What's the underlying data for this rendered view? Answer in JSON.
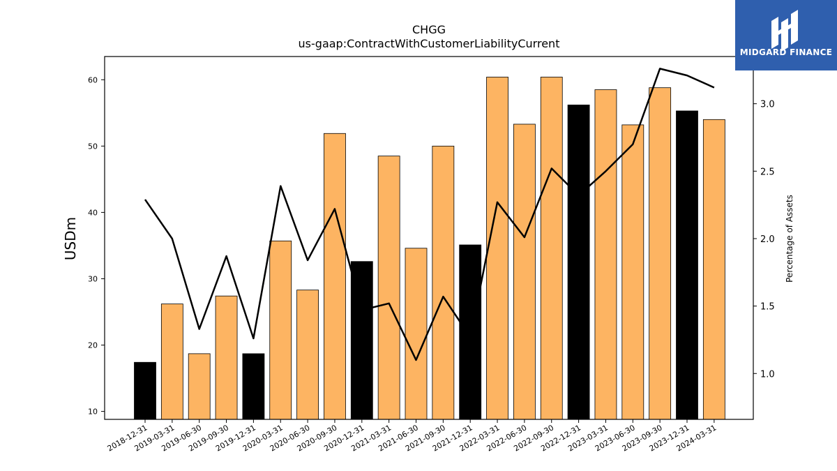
{
  "chart_data": {
    "type": "bar",
    "title": "CHGG",
    "subtitle": "us-gaap:ContractWithCustomerLiabilityCurrent",
    "ylabel": "USDm",
    "y2label": "Percentage of Assets",
    "ylim": [
      8.8,
      63.5
    ],
    "y2lim": [
      0.66,
      3.35
    ],
    "yticks": [
      10,
      20,
      30,
      40,
      50,
      60
    ],
    "y2ticks": [
      1.0,
      1.5,
      2.0,
      2.5,
      3.0
    ],
    "grid": false,
    "categories": [
      "2018-12-31",
      "2019-03-31",
      "2019-06-30",
      "2019-09-30",
      "2019-12-31",
      "2020-03-31",
      "2020-06-30",
      "2020-09-30",
      "2020-12-31",
      "2021-03-31",
      "2021-06-30",
      "2021-09-30",
      "2021-12-31",
      "2022-03-31",
      "2022-06-30",
      "2022-09-30",
      "2022-12-31",
      "2023-03-31",
      "2023-06-30",
      "2023-09-30",
      "2023-12-31",
      "2024-03-31"
    ],
    "series": [
      {
        "kind": "bar",
        "values": [
          17.4,
          26.2,
          18.7,
          27.4,
          18.7,
          35.7,
          28.3,
          51.9,
          32.6,
          48.5,
          34.6,
          50.0,
          35.1,
          60.4,
          53.3,
          60.4,
          56.2,
          58.5,
          53.2,
          58.8,
          55.3,
          54.0
        ],
        "colors": [
          "#000000",
          "#fdb462",
          "#fdb462",
          "#fdb462",
          "#000000",
          "#fdb462",
          "#fdb462",
          "#fdb462",
          "#000000",
          "#fdb462",
          "#fdb462",
          "#fdb462",
          "#000000",
          "#fdb462",
          "#fdb462",
          "#fdb462",
          "#000000",
          "#fdb462",
          "#fdb462",
          "#fdb462",
          "#000000",
          "#fdb462"
        ]
      },
      {
        "kind": "line",
        "axis": "right",
        "color": "#000000",
        "values": [
          2.29,
          2.0,
          1.33,
          1.87,
          1.26,
          2.39,
          1.84,
          2.22,
          1.47,
          1.52,
          1.1,
          1.57,
          1.27,
          2.27,
          2.01,
          2.52,
          2.32,
          2.5,
          2.7,
          3.26,
          3.21,
          3.12
        ]
      }
    ]
  },
  "logo": {
    "text": "MIDGARD FINANCE",
    "bg": "#2f5fae",
    "color": "#ffffff"
  }
}
